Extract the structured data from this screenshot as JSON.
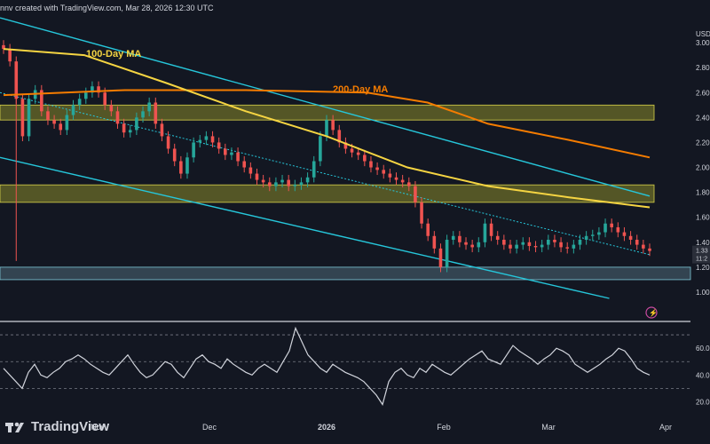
{
  "header": {
    "text": "nnv created with TradingView.com, Mar 28, 2026 12:30 UTC"
  },
  "symbol_currency": "USD",
  "branding": {
    "logo_text": "TradingView"
  },
  "price_labels": {
    "last": "1.33",
    "countdown": "11:2"
  },
  "colors": {
    "background": "#131722",
    "up": "#26a69a",
    "down": "#ef5350",
    "ma100": "#f5d442",
    "ma200": "#f57c00",
    "channel": "#26c6da",
    "zone_fill": "#8a8a2a",
    "support_fill": "#5b7d8c",
    "rsi": "#d1d4dc"
  },
  "chart_data": [
    {
      "type": "candlestick",
      "x_axis": {
        "labels": [
          "Nov",
          "Dec",
          "2026",
          "Feb",
          "Mar",
          "Apr"
        ]
      },
      "y_axis": {
        "ticks": [
          1.0,
          1.2,
          1.4,
          1.6,
          1.8,
          2.0,
          2.2,
          2.4,
          2.6,
          2.8,
          3.0
        ],
        "tick_labels": [
          "1.00",
          "1.20",
          "1.40",
          "1.60",
          "1.80",
          "2.00",
          "2.20",
          "2.40",
          "2.60",
          "2.80",
          "3.00"
        ],
        "range": [
          0.95,
          3.2
        ]
      },
      "close_series": [
        2.95,
        2.85,
        2.55,
        2.25,
        2.55,
        2.62,
        2.45,
        2.38,
        2.35,
        2.3,
        2.42,
        2.5,
        2.55,
        2.6,
        2.65,
        2.6,
        2.5,
        2.45,
        2.35,
        2.28,
        2.3,
        2.4,
        2.45,
        2.52,
        2.35,
        2.25,
        2.15,
        2.05,
        1.95,
        2.08,
        2.2,
        2.22,
        2.25,
        2.2,
        2.15,
        2.1,
        2.12,
        2.05,
        2.0,
        1.95,
        1.9,
        1.88,
        1.85,
        1.88,
        1.9,
        1.85,
        1.86,
        1.88,
        1.92,
        2.05,
        2.25,
        2.38,
        2.3,
        2.2,
        2.15,
        2.12,
        2.1,
        2.05,
        2.0,
        1.98,
        1.95,
        1.92,
        1.9,
        1.88,
        1.85,
        1.72,
        1.55,
        1.45,
        1.35,
        1.2,
        1.42,
        1.45,
        1.4,
        1.38,
        1.36,
        1.4,
        1.55,
        1.45,
        1.42,
        1.38,
        1.35,
        1.38,
        1.4,
        1.37,
        1.36,
        1.38,
        1.42,
        1.4,
        1.36,
        1.35,
        1.38,
        1.42,
        1.45,
        1.46,
        1.48,
        1.55,
        1.52,
        1.48,
        1.45,
        1.42,
        1.38,
        1.35,
        1.33
      ],
      "annotations": [
        "100-Day MA",
        "200-Day MA"
      ],
      "moving_averages": [
        {
          "name": "100-Day MA",
          "points": [
            [
              0,
              2.95
            ],
            [
              20,
              2.9
            ],
            [
              40,
              2.68
            ],
            [
              60,
              2.45
            ],
            [
              80,
              2.25
            ],
            [
              100,
              2.0
            ],
            [
              120,
              1.85
            ],
            [
              140,
              1.76
            ],
            [
              160,
              1.68
            ]
          ]
        },
        {
          "name": "200-Day MA",
          "points": [
            [
              0,
              2.58
            ],
            [
              30,
              2.62
            ],
            [
              60,
              2.62
            ],
            [
              90,
              2.6
            ],
            [
              105,
              2.52
            ],
            [
              120,
              2.35
            ],
            [
              140,
              2.22
            ],
            [
              160,
              2.08
            ]
          ]
        }
      ],
      "zones": [
        {
          "from": 2.38,
          "to": 2.5
        },
        {
          "from": 1.72,
          "to": 1.86
        }
      ],
      "support_zone": {
        "from": 1.1,
        "to": 1.2
      }
    },
    {
      "type": "line",
      "name": "RSI",
      "y_axis": {
        "ticks": [
          20,
          40,
          60
        ],
        "tick_labels": [
          "20.00",
          "40.00",
          "60.00"
        ],
        "range": [
          15,
          80
        ]
      },
      "reference_lines": [
        30,
        50,
        70
      ],
      "values": [
        45,
        40,
        35,
        30,
        42,
        48,
        40,
        38,
        42,
        45,
        50,
        52,
        55,
        52,
        48,
        45,
        42,
        40,
        45,
        50,
        55,
        48,
        42,
        38,
        40,
        45,
        50,
        48,
        42,
        38,
        45,
        52,
        55,
        50,
        48,
        45,
        52,
        48,
        45,
        42,
        40,
        45,
        48,
        45,
        42,
        50,
        58,
        75,
        65,
        55,
        50,
        45,
        42,
        48,
        45,
        42,
        40,
        38,
        35,
        30,
        25,
        18,
        35,
        42,
        45,
        40,
        38,
        45,
        42,
        48,
        45,
        42,
        40,
        44,
        48,
        52,
        55,
        58,
        52,
        50,
        48,
        55,
        62,
        58,
        55,
        52,
        48,
        52,
        55,
        60,
        58,
        55,
        48,
        45,
        42,
        45,
        48,
        52,
        55,
        60,
        58,
        52,
        45,
        42,
        40
      ]
    }
  ]
}
